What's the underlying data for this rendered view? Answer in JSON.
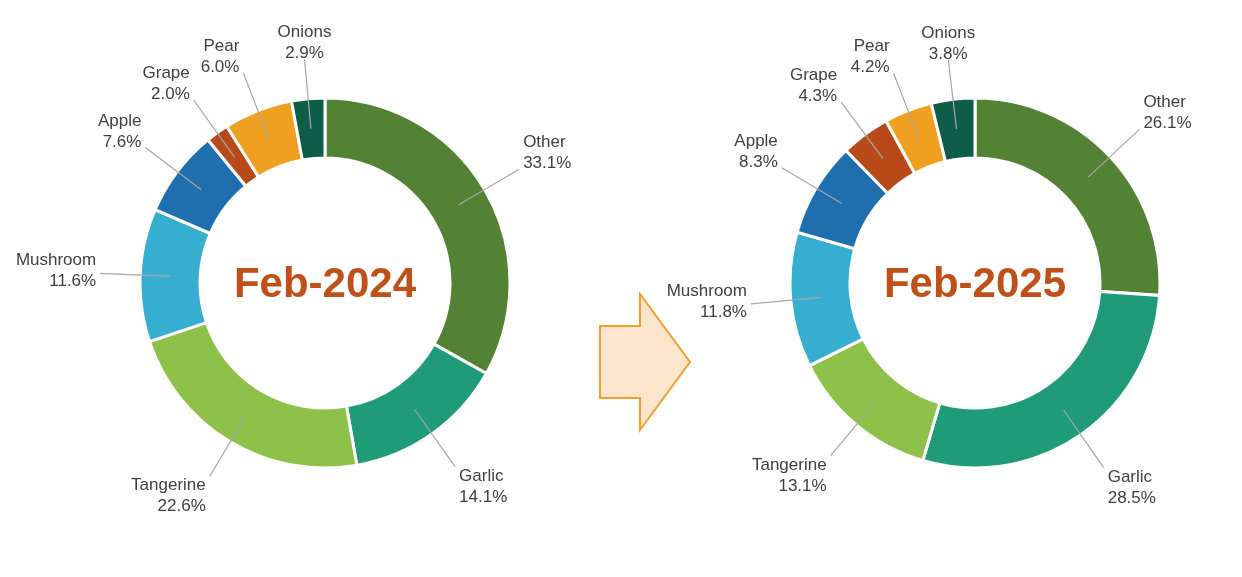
{
  "chart_data": [
    {
      "type": "donut",
      "title": "Feb-2024",
      "categories": [
        "Other",
        "Garlic",
        "Tangerine",
        "Mushroom",
        "Apple",
        "Grape",
        "Pear",
        "Onions"
      ],
      "values": [
        33.1,
        14.1,
        22.6,
        11.6,
        7.6,
        2.0,
        6.0,
        2.9
      ],
      "value_labels": [
        "33.1%",
        "14.1%",
        "22.6%",
        "11.6%",
        "7.6%",
        "2.0%",
        "6.0%",
        "2.9%"
      ],
      "colors": [
        "#548235",
        "#1f9b78",
        "#8dc149",
        "#36aed0",
        "#1f6fae",
        "#b84a1a",
        "#f0a020",
        "#0f5c48"
      ]
    },
    {
      "type": "donut",
      "title": "Feb-2025",
      "categories": [
        "Other",
        "Garlic",
        "Tangerine",
        "Mushroom",
        "Apple",
        "Grape",
        "Pear",
        "Onions"
      ],
      "values": [
        26.1,
        28.5,
        13.1,
        11.8,
        8.3,
        4.3,
        4.2,
        3.8
      ],
      "value_labels": [
        "26.1%",
        "28.5%",
        "13.1%",
        "11.8%",
        "8.3%",
        "4.3%",
        "4.2%",
        "3.8%"
      ],
      "colors": [
        "#548235",
        "#1f9b78",
        "#8dc149",
        "#36aed0",
        "#1f6fae",
        "#b84a1a",
        "#f0a020",
        "#0f5c48"
      ]
    }
  ]
}
